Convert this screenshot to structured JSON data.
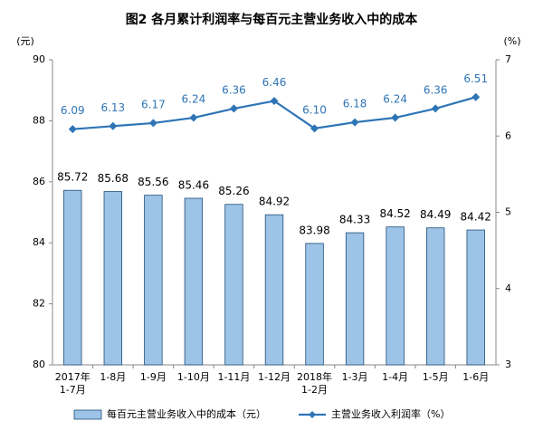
{
  "chart_data": {
    "type": "bar-line",
    "title": "图2  各月累计利润率与每百元主营业务收入中的成本",
    "y_label": "(元)",
    "y2_label": "(%)",
    "categories": [
      "2017年\n1-7月",
      "1-8月",
      "1-9月",
      "1-10月",
      "1-11月",
      "1-12月",
      "2018年\n1-2月",
      "1-3月",
      "1-4月",
      "1-5月",
      "1-6月"
    ],
    "series": [
      {
        "name": "每百元主营业务收入中的成本（元）",
        "type": "bar",
        "color": "#9dc3e6",
        "values": [
          85.72,
          85.68,
          85.56,
          85.46,
          85.26,
          84.92,
          83.98,
          84.33,
          84.52,
          84.49,
          84.42
        ]
      },
      {
        "name": "主营业务收入利润率（%）",
        "type": "line",
        "axis": "y2",
        "color": "#2e75b6",
        "values": [
          6.09,
          6.13,
          6.17,
          6.24,
          6.36,
          6.46,
          6.1,
          6.18,
          6.24,
          6.36,
          6.51
        ],
        "value_labels": [
          "6.09",
          "6.13",
          "6.17",
          "6.24",
          "6.36",
          "6.46",
          "6.10",
          "6.18",
          "6.24",
          "6.36",
          "6.51"
        ]
      }
    ],
    "ylim": [
      80,
      90
    ],
    "yticks": [
      80,
      82,
      84,
      86,
      88,
      90
    ],
    "y2lim": [
      3,
      7
    ],
    "y2ticks": [
      3,
      4,
      5,
      6,
      7
    ],
    "grid": false,
    "legend": "bottom"
  }
}
